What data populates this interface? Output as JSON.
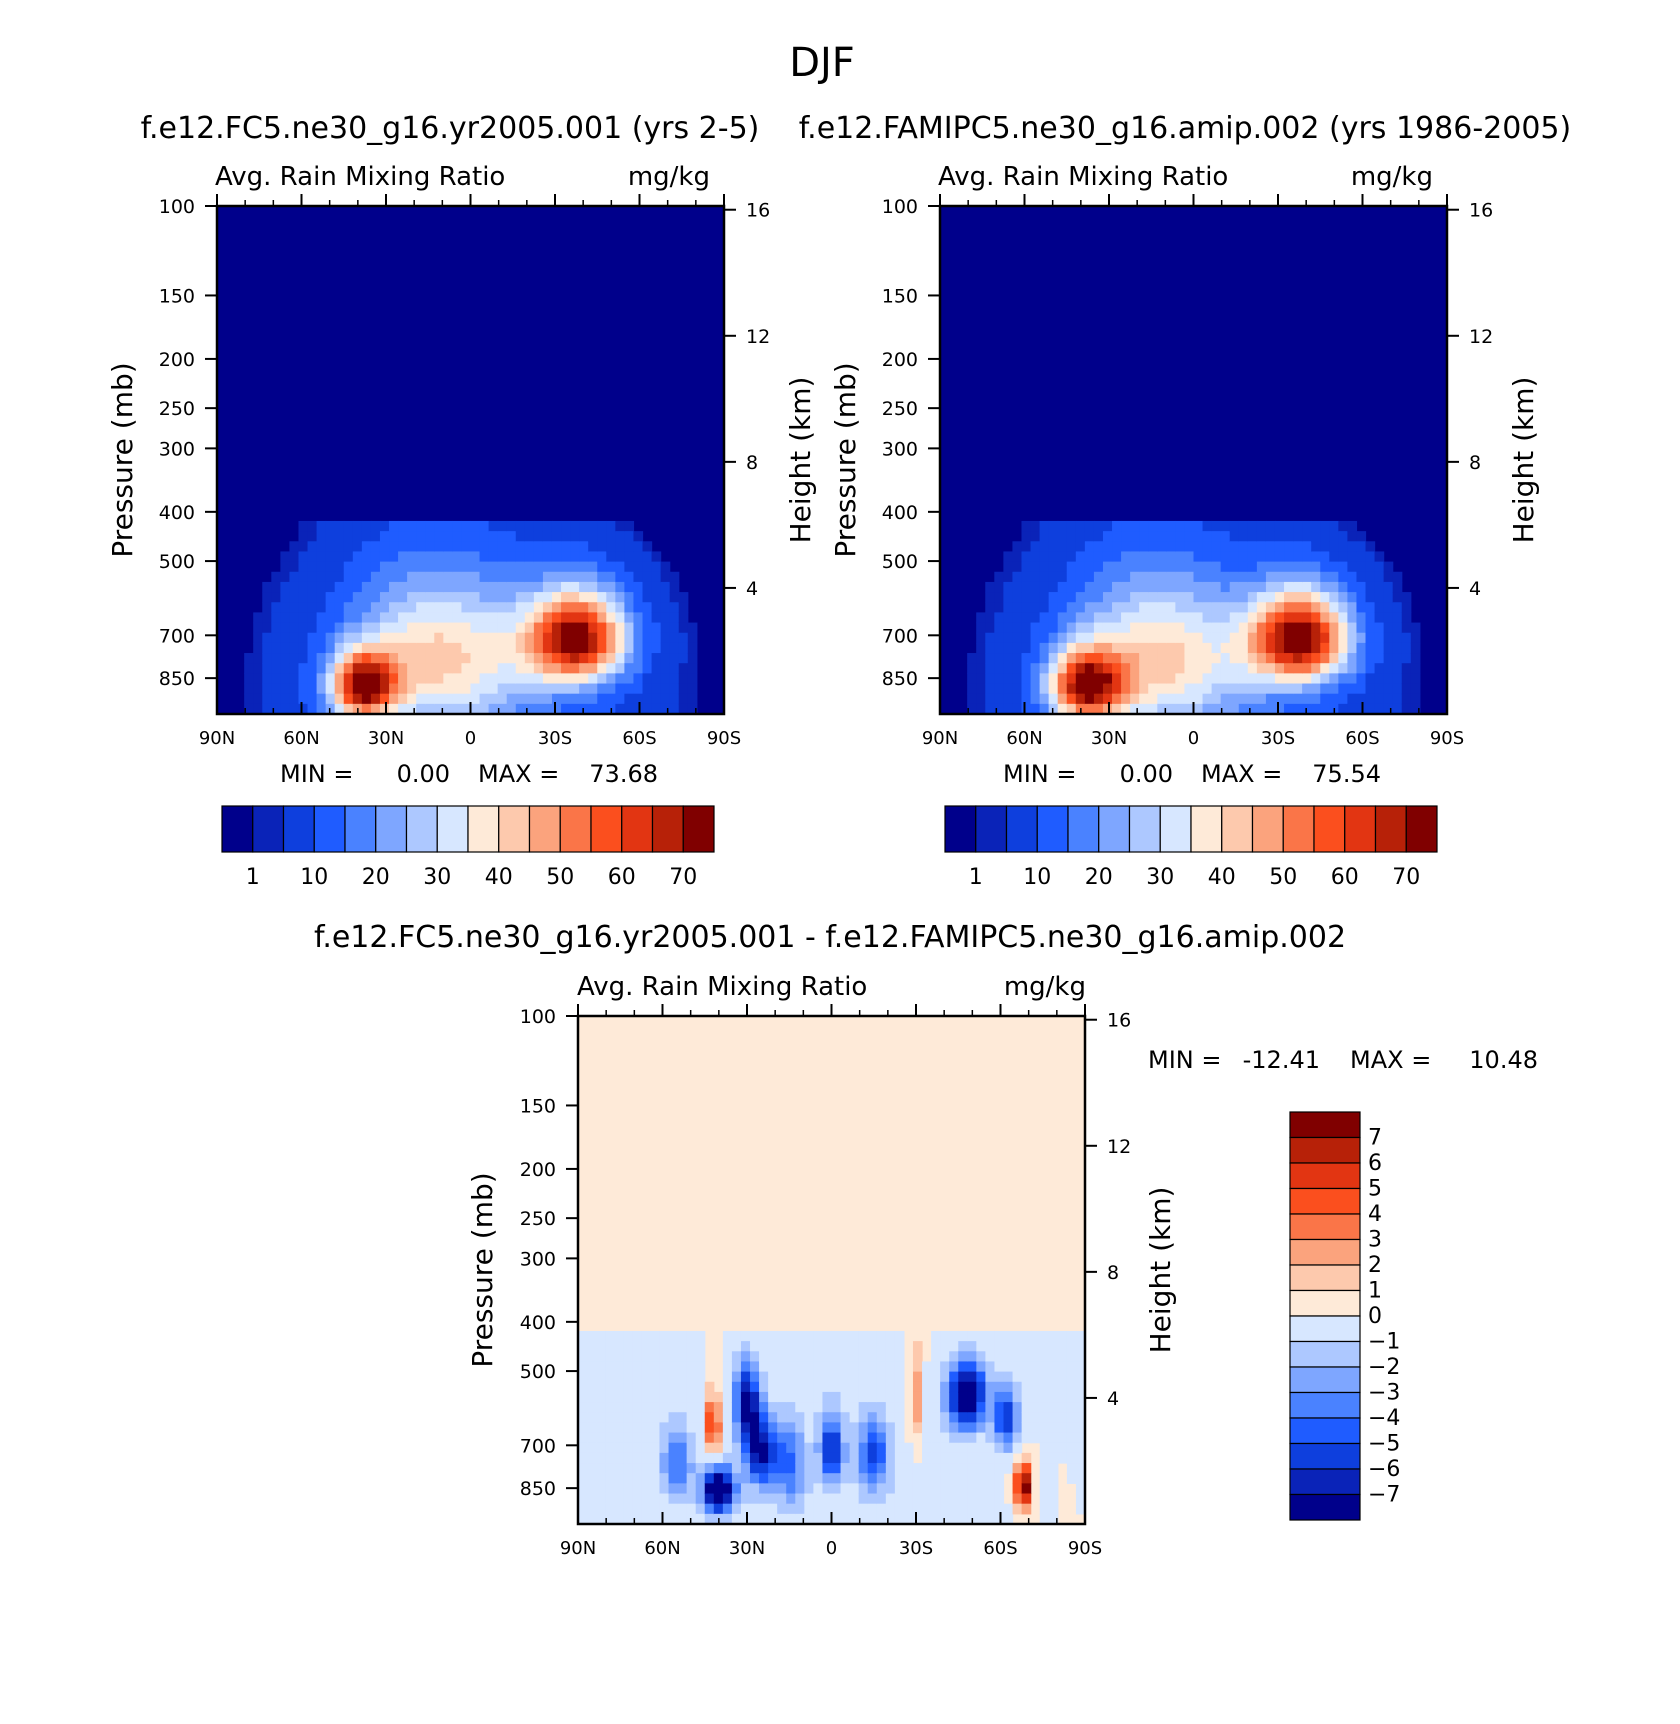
{
  "figure": {
    "title": "DJF"
  },
  "colors": {
    "abs_fills": [
      "#00008b",
      "#0a23b8",
      "#0e3fdd",
      "#1f5cff",
      "#4a82ff",
      "#7ea6ff",
      "#adc8ff",
      "#d7e7ff",
      "#feead8",
      "#fdc9ad",
      "#fba37d",
      "#fa7548",
      "#fb4f1e",
      "#e23512",
      "#b72108",
      "#800000"
    ],
    "diff_fills": [
      "#00008b",
      "#0a23b8",
      "#0e3fdd",
      "#1f5cff",
      "#4a82ff",
      "#7ea6ff",
      "#adc8ff",
      "#d7e7ff",
      "#feead8",
      "#fdc9ad",
      "#fba37d",
      "#fa7548",
      "#fb4f1e",
      "#e23512",
      "#b72108",
      "#800000"
    ]
  },
  "chart_data": [
    {
      "type": "heatmap",
      "title": "f.e12.FC5.ne30_g16.yr2005.001 (yrs 2-5)",
      "left_label": "Avg. Rain Mixing Ratio",
      "right_label": "mg/kg",
      "ylabel": "Pressure (mb)",
      "y2label": "Height (km)",
      "x_ticks": [
        "90N",
        "60N",
        "30N",
        "0",
        "30S",
        "60S",
        "90S"
      ],
      "x_values": [
        90,
        60,
        30,
        0,
        -30,
        -60,
        -90
      ],
      "y_ticks": [
        "100",
        "150",
        "200",
        "250",
        "300",
        "400",
        "500",
        "700",
        "850"
      ],
      "y_values": [
        100,
        150,
        200,
        250,
        300,
        400,
        500,
        700,
        850
      ],
      "y2_ticks": [
        "16",
        "12",
        "8",
        "4"
      ],
      "y2_values": [
        16,
        12,
        8,
        4
      ],
      "ylim": [
        100,
        1000
      ],
      "stats": {
        "min_label": "MIN =",
        "min": "0.00",
        "max_label": "MAX =",
        "max": "73.68"
      },
      "colorbar_labels": [
        "1",
        "10",
        "20",
        "30",
        "40",
        "50",
        "60",
        "70"
      ],
      "levels": [
        0.5,
        1,
        5,
        10,
        15,
        20,
        25,
        30,
        35,
        40,
        45,
        50,
        55,
        60,
        65,
        70
      ],
      "blobs": [
        {
          "lat": 38,
          "p": 880,
          "amp": 60,
          "sx": 8,
          "sp": 90
        },
        {
          "lat": -38,
          "p": 710,
          "amp": 63,
          "sx": 12,
          "sp": 100
        },
        {
          "lat": 0,
          "p": 760,
          "amp": 22,
          "sx": 25,
          "sp": 180
        },
        {
          "lat": 20,
          "p": 780,
          "amp": 16,
          "sx": 18,
          "sp": 200
        }
      ]
    },
    {
      "type": "heatmap",
      "title": "f.e12.FAMIPC5.ne30_g16.amip.002 (yrs 1986-2005)",
      "left_label": "Avg. Rain Mixing Ratio",
      "right_label": "mg/kg",
      "ylabel": "Pressure (mb)",
      "y2label": "Height (km)",
      "x_ticks": [
        "90N",
        "60N",
        "30N",
        "0",
        "30S",
        "60S",
        "90S"
      ],
      "x_values": [
        90,
        60,
        30,
        0,
        -30,
        -60,
        -90
      ],
      "y_ticks": [
        "100",
        "150",
        "200",
        "250",
        "300",
        "400",
        "500",
        "700",
        "850"
      ],
      "y_values": [
        100,
        150,
        200,
        250,
        300,
        400,
        500,
        700,
        850
      ],
      "y2_ticks": [
        "16",
        "12",
        "8",
        "4"
      ],
      "y2_values": [
        16,
        12,
        8,
        4
      ],
      "ylim": [
        100,
        1000
      ],
      "stats": {
        "min_label": "MIN =",
        "min": "0.00",
        "max_label": "MAX =",
        "max": "75.54"
      },
      "colorbar_labels": [
        "1",
        "10",
        "20",
        "30",
        "40",
        "50",
        "60",
        "70"
      ],
      "levels": [
        0.5,
        1,
        5,
        10,
        15,
        20,
        25,
        30,
        35,
        40,
        45,
        50,
        55,
        60,
        65,
        70
      ],
      "blobs": [
        {
          "lat": 38,
          "p": 880,
          "amp": 58,
          "sx": 9,
          "sp": 95
        },
        {
          "lat": -38,
          "p": 710,
          "amp": 65,
          "sx": 12,
          "sp": 100
        },
        {
          "lat": 0,
          "p": 760,
          "amp": 20,
          "sx": 25,
          "sp": 180
        },
        {
          "lat": 20,
          "p": 790,
          "amp": 18,
          "sx": 18,
          "sp": 200
        }
      ]
    },
    {
      "type": "heatmap",
      "title": "f.e12.FC5.ne30_g16.yr2005.001 - f.e12.FAMIPC5.ne30_g16.amip.002",
      "left_label": "Avg. Rain Mixing Ratio",
      "right_label": "mg/kg",
      "ylabel": "Pressure (mb)",
      "y2label": "Height (km)",
      "x_ticks": [
        "90N",
        "60N",
        "30N",
        "0",
        "30S",
        "60S",
        "90S"
      ],
      "x_values": [
        90,
        60,
        30,
        0,
        -30,
        -60,
        -90
      ],
      "y_ticks": [
        "100",
        "150",
        "200",
        "250",
        "300",
        "400",
        "500",
        "700",
        "850"
      ],
      "y_values": [
        100,
        150,
        200,
        250,
        300,
        400,
        500,
        700,
        850
      ],
      "y2_ticks": [
        "16",
        "12",
        "8",
        "4"
      ],
      "y2_values": [
        16,
        12,
        8,
        4
      ],
      "ylim": [
        100,
        1000
      ],
      "stats": {
        "min_label": "MIN =",
        "min": "-12.41",
        "max_label": "MAX =",
        "max": "10.48"
      },
      "colorbar_labels": [
        "7",
        "6",
        "5",
        "4",
        "3",
        "2",
        "1",
        "0",
        "-1",
        "-2",
        "-3",
        "-4",
        "-5",
        "-6",
        "-7"
      ],
      "levels": [
        -7,
        -6,
        -5,
        -4,
        -3,
        -2,
        -1,
        0,
        1,
        2,
        3,
        4,
        5,
        6,
        7
      ],
      "blobs": [
        {
          "lat": 40,
          "p": 860,
          "amp": -10,
          "sx": 4,
          "sp": 60
        },
        {
          "lat": 30,
          "p": 580,
          "amp": -8,
          "sx": 3,
          "sp": 70
        },
        {
          "lat": 25,
          "p": 720,
          "amp": -7,
          "sx": 4,
          "sp": 80
        },
        {
          "lat": 0,
          "p": 710,
          "amp": -6,
          "sx": 3,
          "sp": 80
        },
        {
          "lat": -48,
          "p": 560,
          "amp": -9,
          "sx": 5,
          "sp": 60
        },
        {
          "lat": -62,
          "p": 620,
          "amp": -6,
          "sx": 3,
          "sp": 60
        },
        {
          "lat": 42,
          "p": 640,
          "amp": 7,
          "sx": 1.5,
          "sp": 60
        },
        {
          "lat": -68,
          "p": 840,
          "amp": 9,
          "sx": 2,
          "sp": 60
        },
        {
          "lat": -30,
          "p": 560,
          "amp": 3,
          "sx": 1.5,
          "sp": 80
        },
        {
          "lat": 15,
          "p": 760,
          "amp": -4,
          "sx": 4,
          "sp": 100
        },
        {
          "lat": -15,
          "p": 730,
          "amp": -5,
          "sx": 4,
          "sp": 90
        },
        {
          "lat": 55,
          "p": 760,
          "amp": -4,
          "sx": 4,
          "sp": 90
        }
      ]
    }
  ]
}
